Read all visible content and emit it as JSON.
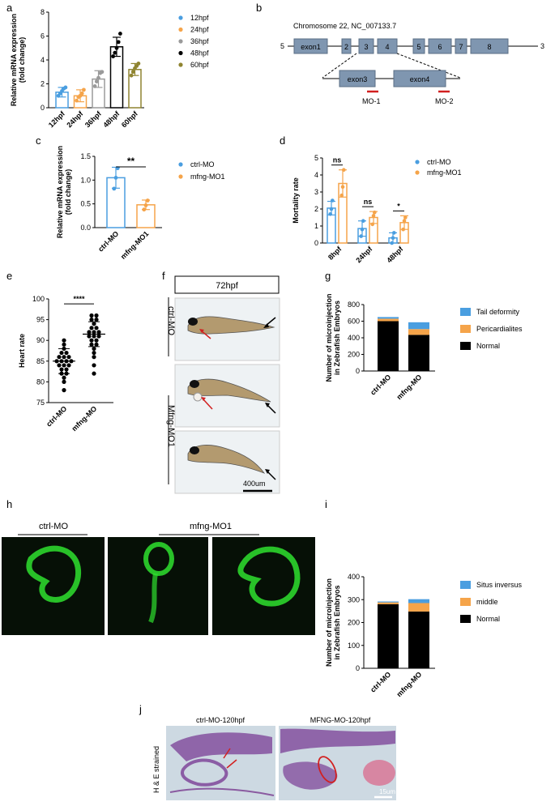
{
  "panels": {
    "a": "a",
    "b": "b",
    "c": "c",
    "d": "d",
    "e": "e",
    "f": "f",
    "g": "g",
    "h": "h",
    "i": "i",
    "j": "j"
  },
  "colors": {
    "blue": "#4a9ee0",
    "orange": "#f5a44a",
    "gray": "#9a9a9a",
    "black": "#000000",
    "olive": "#8f8430",
    "exon": "#7f96b0",
    "red": "#d22020",
    "embryo_bg": "#eef2f4",
    "fluor_bg": "#061006",
    "fluor": "#2fe02f",
    "histo_bg": "#cdd9e2",
    "histo_tissue": "#7a3d96",
    "histo_pink": "#d96a8c"
  },
  "chart_data": [
    {
      "panel": "a",
      "type": "bar",
      "categories": [
        "12hpf",
        "24hpf",
        "36hpf",
        "48hpf",
        "60hpf"
      ],
      "values": [
        1.3,
        1.0,
        2.4,
        5.1,
        3.2
      ],
      "errors": [
        0.4,
        0.5,
        0.7,
        0.8,
        0.5
      ],
      "points": [
        [
          1.0,
          1.2,
          1.4,
          1.6,
          1.7
        ],
        [
          0.6,
          0.9,
          1.0,
          1.2,
          1.5
        ],
        [
          1.8,
          2.2,
          2.5,
          2.9,
          3.0
        ],
        [
          4.3,
          4.6,
          5.0,
          5.5,
          6.2
        ],
        [
          2.7,
          3.0,
          3.3,
          3.5,
          3.7
        ]
      ],
      "xlabel": "",
      "ylabel": [
        "Relative mRNA expression",
        "(fold change)"
      ],
      "ylim": [
        0,
        8
      ],
      "yticks": [
        0,
        2,
        4,
        6,
        8
      ],
      "legend": [
        "12hpf",
        "24hpf",
        "36hpf",
        "48hpf",
        "60hpf"
      ],
      "legend_position": "right",
      "grid": false
    },
    {
      "panel": "c",
      "type": "bar",
      "categories": [
        "ctrl-MO",
        "mfng-MO1"
      ],
      "values": [
        1.05,
        0.48
      ],
      "errors": [
        0.22,
        0.1
      ],
      "points": [
        [
          0.82,
          1.05,
          1.25
        ],
        [
          0.38,
          0.47,
          0.57
        ]
      ],
      "ylabel": [
        "Relative mRNA expression",
        "(fold change)"
      ],
      "ylim": [
        0,
        1.5
      ],
      "yticks": [
        "0.0",
        "0.5",
        "1.0",
        "1.5"
      ],
      "legend": [
        "ctrl-MO",
        "mfng-MO1"
      ],
      "legend_position": "right",
      "significance": "**",
      "grid": false
    },
    {
      "panel": "d",
      "type": "bar",
      "categories": [
        "8hpf",
        "24hpf",
        "48hpf"
      ],
      "series": [
        {
          "name": "ctrl-MO",
          "values": [
            2.05,
            0.85,
            0.3
          ],
          "errors": [
            0.4,
            0.45,
            0.3
          ]
        },
        {
          "name": "mfng-MO1",
          "values": [
            3.5,
            1.5,
            1.2
          ],
          "errors": [
            0.8,
            0.35,
            0.4
          ]
        }
      ],
      "points": [
        [
          [
            1.7,
            2.0,
            2.5
          ],
          [
            2.8,
            3.3,
            4.3
          ]
        ],
        [
          [
            0.4,
            0.8,
            1.3
          ],
          [
            1.1,
            1.6,
            1.8
          ]
        ],
        [
          [
            0.0,
            0.3,
            0.6
          ],
          [
            0.8,
            1.3,
            1.5
          ]
        ]
      ],
      "ylabel": [
        "Mortality rate"
      ],
      "ylim": [
        0,
        5
      ],
      "yticks": [
        0,
        1,
        2,
        3,
        4,
        5
      ],
      "significance": [
        "ns",
        "ns",
        "*"
      ],
      "legend_position": "right",
      "grid": false
    },
    {
      "panel": "e",
      "type": "scatter",
      "categories": [
        "ctrl-MO",
        "mfng-MO"
      ],
      "points": [
        [
          78,
          80,
          81,
          82,
          82,
          83,
          83,
          84,
          84,
          84,
          85,
          85,
          85,
          85,
          86,
          86,
          86,
          87,
          87,
          88,
          89,
          90
        ],
        [
          82,
          84,
          86,
          87,
          88,
          89,
          89,
          90,
          90,
          91,
          91,
          91,
          92,
          92,
          92,
          93,
          93,
          94,
          95,
          95,
          96,
          96
        ]
      ],
      "means": [
        85,
        91.5
      ],
      "sd": [
        3,
        3
      ],
      "ylabel": [
        "Heart rate"
      ],
      "ylim": [
        75,
        100
      ],
      "yticks": [
        75,
        80,
        85,
        90,
        95,
        100
      ],
      "significance": "****",
      "grid": false
    },
    {
      "panel": "g",
      "type": "bar",
      "stacked": true,
      "categories": [
        "ctrl-MO",
        "mfng-MO"
      ],
      "series": [
        {
          "name": "Normal",
          "color": "#000000",
          "values": [
            600,
            435
          ]
        },
        {
          "name": "Pericardialites",
          "color": "#f5a44a",
          "values": [
            30,
            70
          ]
        },
        {
          "name": "Tail deformity",
          "color": "#4a9ee0",
          "values": [
            20,
            82
          ]
        }
      ],
      "ylabel": [
        "Number of microinjection",
        "in Zebrafish Embryos"
      ],
      "ylim": [
        0,
        800
      ],
      "yticks": [
        0,
        200,
        400,
        600,
        800
      ],
      "legend": [
        "Tail deformity",
        "Pericardialites",
        "Normal"
      ],
      "legend_position": "right",
      "grid": false
    },
    {
      "panel": "i",
      "type": "bar",
      "stacked": true,
      "categories": [
        "ctrl-MO",
        "mfng-MO"
      ],
      "series": [
        {
          "name": "Normal",
          "color": "#000000",
          "values": [
            280,
            248
          ]
        },
        {
          "name": "middle",
          "color": "#f5a44a",
          "values": [
            8,
            37
          ]
        },
        {
          "name": "Situs inversus",
          "color": "#4a9ee0",
          "values": [
            4,
            17
          ]
        }
      ],
      "ylabel": [
        "Number of microinjection",
        "in Zebrafish Embryos"
      ],
      "ylim": [
        0,
        400
      ],
      "yticks": [
        0,
        100,
        200,
        300,
        400
      ],
      "legend": [
        "Situs inversus",
        "middle",
        "Normal"
      ],
      "legend_position": "right",
      "grid": false
    }
  ],
  "diagram_b": {
    "title": "Chromosome 22, NC_007133.7",
    "end5": "5",
    "end3": "3",
    "exons": [
      "exon1",
      "2",
      "3",
      "4",
      "5",
      "6",
      "7",
      "8"
    ],
    "zoom_exons": [
      "exon3",
      "exon4"
    ],
    "mo_labels": [
      "MO-1",
      "MO-2"
    ]
  },
  "panel_f": {
    "header": "72hpf",
    "group1": "ctrl-MO",
    "group2": "Mfng-MO1",
    "scale": "400um"
  },
  "panel_h": {
    "group1": "ctrl-MO",
    "group2": "mfng-MO1"
  },
  "panel_j": {
    "title1": "ctrl-MO-120hpf",
    "title2": "MFNG-MO-120hpf",
    "side_label": "H & E strained",
    "scale": "15um"
  }
}
